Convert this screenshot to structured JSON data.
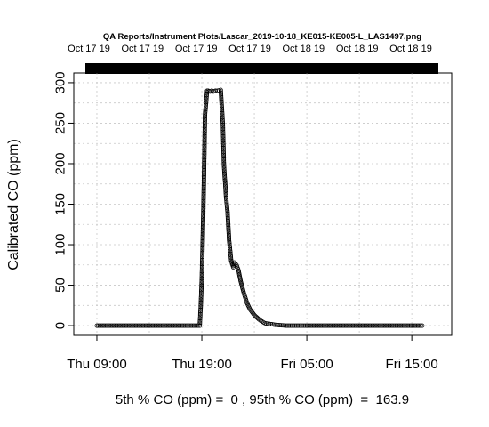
{
  "chart_data": {
    "type": "scatter",
    "title": "QA Reports/Instrument Plots/Lascar_2019-10-18_KE015-KE005-L_LAS1497.png",
    "top_tick_labels": [
      "Oct 17 19",
      "Oct 17 19",
      "Oct 17 19",
      "Oct 17 19",
      "Oct 18 19",
      "Oct 18 19",
      "Oct 18 19"
    ],
    "x_tick_labels": [
      "Thu 09:00",
      "Thu 19:00",
      "Fri 05:00",
      "Fri 15:00"
    ],
    "x_tick_hours": [
      0,
      10,
      20,
      30
    ],
    "xlim_hours": [
      -2.2,
      33.8
    ],
    "ylabel": "Calibrated CO (ppm)",
    "y_ticks": [
      0,
      50,
      100,
      150,
      200,
      250,
      300
    ],
    "ylim": [
      -12,
      312
    ],
    "grid": true,
    "caption": "5th % CO (ppm) =  0 , 95th % CO (ppm)  =  163.9",
    "series": [
      {
        "x_hours": [
          0,
          2,
          4,
          6,
          8,
          9.8,
          9.9,
          10.0,
          10.1,
          10.2,
          10.3,
          10.5,
          10.6,
          10.8,
          10.95,
          11.1,
          11.3,
          11.5,
          11.8,
          12.0,
          12.1,
          12.3,
          12.45,
          12.6,
          12.8,
          13.0,
          13.1,
          13.3,
          13.5,
          13.7,
          14.0,
          14.3,
          14.6,
          15.0,
          15.5,
          16.0,
          17.0,
          18.0,
          19.0,
          20.0,
          24.0,
          28.0,
          31.0
        ],
        "y": [
          0,
          0,
          0,
          0,
          0,
          0,
          25,
          60,
          115,
          180,
          260,
          290,
          290,
          289,
          290,
          289,
          290,
          290,
          291,
          250,
          200,
          160,
          140,
          105,
          80,
          72,
          78,
          75,
          68,
          55,
          40,
          28,
          20,
          13,
          7,
          3,
          1,
          0,
          0,
          0,
          0,
          0,
          0
        ]
      }
    ]
  }
}
